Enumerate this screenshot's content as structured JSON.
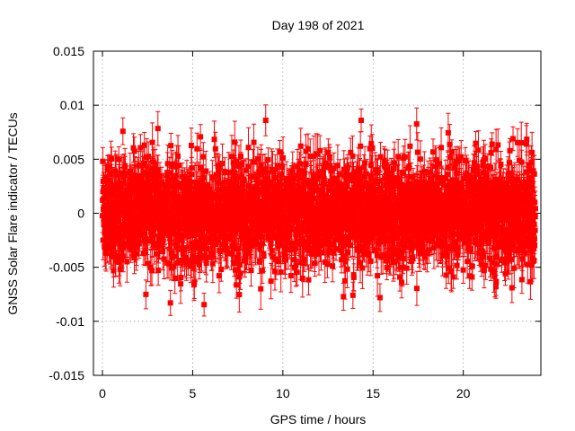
{
  "chart_data": {
    "type": "scatter",
    "title": "Day 198 of 2021",
    "xlabel": "GPS time / hours",
    "ylabel": "GNSS Solar Flare indicator / TECUs",
    "xlim": [
      -0.5,
      24.3
    ],
    "ylim": [
      -0.015,
      0.015
    ],
    "x_ticks": [
      0,
      5,
      10,
      15,
      20
    ],
    "y_ticks": [
      -0.015,
      -0.01,
      -0.005,
      0,
      0.005,
      0.01,
      0.015
    ],
    "x_tick_labels": [
      "0",
      "5",
      "10",
      "15",
      "20"
    ],
    "y_tick_labels": [
      "-0.015",
      "-0.01",
      "-0.005",
      "0",
      "0.005",
      "0.01",
      "0.015"
    ],
    "grid": true,
    "marker": "square",
    "error_bars": true,
    "sampling_interval_hours": 0.008333,
    "series": [
      {
        "color": "#ff0000",
        "x_range": [
          0,
          24
        ],
        "mean": 0.0,
        "std_dev": 0.0025,
        "typical_error": 0.0015,
        "max_value": 0.0086,
        "min_value": -0.0089
      }
    ]
  }
}
